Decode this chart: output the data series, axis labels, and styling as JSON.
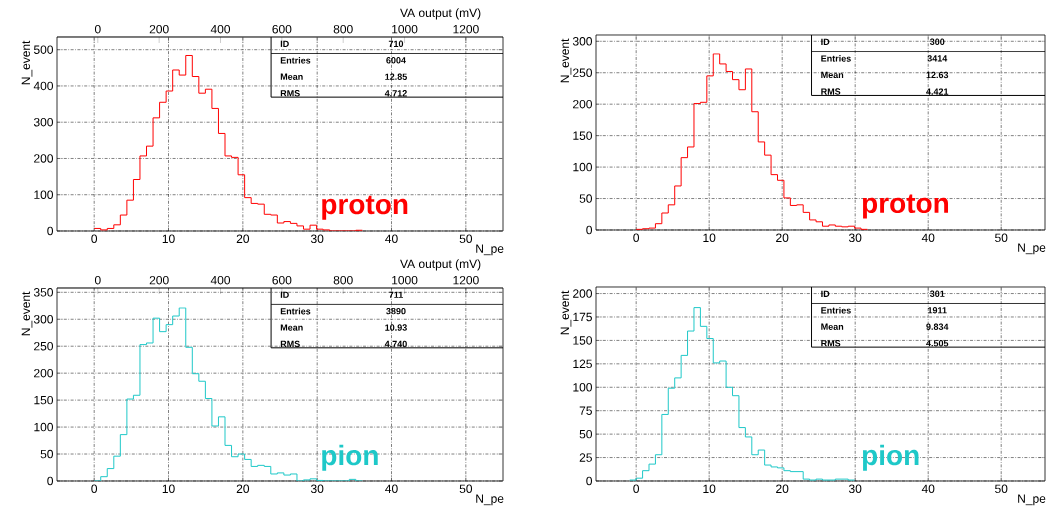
{
  "chart_data": [
    {
      "type": "histogram",
      "xlabel": "N_pe",
      "ylabel": "N_event",
      "x2label": "VA output (mV)",
      "color": "#ff0000",
      "grid": true,
      "xlim": [
        -5,
        55
      ],
      "xticks": [
        0,
        10,
        20,
        30,
        40,
        50
      ],
      "ylim": [
        0,
        535
      ],
      "yticks": [
        0,
        100,
        200,
        300,
        400,
        500
      ],
      "x2lim": [
        -133,
        1321
      ],
      "x2ticks": [
        0,
        200,
        400,
        600,
        800,
        1000,
        1200
      ],
      "bins": [
        0,
        0.88,
        1.76,
        2.64,
        3.52,
        4.4,
        5.28,
        6.16,
        7.04,
        7.92,
        8.8,
        9.68,
        10.56,
        11.44,
        12.32,
        13.2,
        14.08,
        14.96,
        15.84,
        16.72,
        17.6,
        18.48,
        19.36,
        20.24,
        21.12,
        22,
        22.88,
        23.76,
        24.64,
        25.52,
        26.4,
        27.28,
        28.16,
        29.04,
        29.92,
        30.8,
        31.68,
        32.56,
        33.44,
        34.32,
        35.2,
        36.08
      ],
      "values": [
        7,
        3,
        7,
        17,
        44,
        85,
        142,
        207,
        234,
        312,
        355,
        386,
        444,
        430,
        484,
        426,
        380,
        391,
        338,
        269,
        207,
        203,
        155,
        92,
        76,
        74,
        46,
        44,
        22,
        26,
        21,
        14,
        5,
        16,
        5,
        3,
        0,
        0,
        0,
        0,
        2
      ],
      "annotations": [
        "ID",
        "710",
        "Entries",
        "6004",
        "Mean",
        "12.85",
        "RMS",
        "4.712",
        "proton"
      ]
    },
    {
      "type": "histogram",
      "xlabel": "N_pe",
      "ylabel": "N_event",
      "color": "#ff0000",
      "grid": true,
      "xlim": [
        -5.5,
        56
      ],
      "xticks": [
        0,
        10,
        20,
        30,
        40,
        50
      ],
      "ylim": [
        0,
        310
      ],
      "yticks": [
        0,
        50,
        100,
        150,
        200,
        250,
        300
      ],
      "bins": [
        0,
        0.88,
        1.76,
        2.64,
        3.52,
        4.4,
        5.28,
        6.16,
        7.04,
        7.92,
        8.8,
        9.68,
        10.56,
        11.44,
        12.32,
        13.2,
        14.08,
        14.96,
        15.84,
        16.72,
        17.6,
        18.48,
        19.36,
        20.24,
        21.12,
        22,
        22.88,
        23.76,
        24.64,
        25.52,
        26.4,
        27.28,
        28.16,
        29.04,
        29.92,
        30.8,
        31.68
      ],
      "values": [
        1,
        2,
        3,
        10,
        27,
        40,
        70,
        115,
        132,
        201,
        203,
        245,
        280,
        264,
        252,
        239,
        223,
        256,
        188,
        140,
        119,
        88,
        79,
        51,
        39,
        40,
        28,
        16,
        13,
        6,
        8,
        6,
        5,
        6,
        3,
        1
      ],
      "annotations": [
        "ID",
        "300",
        "Entries",
        "3414",
        "Mean",
        "12.63",
        "RMS",
        "4.421",
        "proton"
      ]
    },
    {
      "type": "histogram",
      "xlabel": "N_pe",
      "ylabel": "N_event",
      "x2label": "VA output (mV)",
      "color": "#1ec8c8",
      "grid": true,
      "xlim": [
        -5,
        55
      ],
      "xticks": [
        0,
        10,
        20,
        30,
        40,
        50
      ],
      "ylim": [
        0,
        358
      ],
      "yticks": [
        0,
        50,
        100,
        150,
        200,
        250,
        300,
        350
      ],
      "x2lim": [
        -133,
        1321
      ],
      "x2ticks": [
        0,
        200,
        400,
        600,
        800,
        1000,
        1200
      ],
      "bins": [
        0,
        0.88,
        1.76,
        2.64,
        3.52,
        4.4,
        5.28,
        6.16,
        7.04,
        7.92,
        8.8,
        9.68,
        10.56,
        11.44,
        12.32,
        13.2,
        14.08,
        14.96,
        15.84,
        16.72,
        17.6,
        18.48,
        19.36,
        20.24,
        21.12,
        22,
        22.88,
        23.76,
        24.64,
        25.52,
        26.4,
        27.28,
        28.16,
        29.04,
        29.92,
        30.8,
        31.68,
        32.56,
        33.44,
        34.32,
        35.2,
        36.08
      ],
      "values": [
        0,
        8,
        23,
        46,
        86,
        152,
        159,
        253,
        256,
        302,
        277,
        290,
        306,
        321,
        248,
        199,
        185,
        153,
        102,
        119,
        66,
        45,
        50,
        40,
        27,
        29,
        27,
        13,
        15,
        11,
        13,
        0,
        2,
        4,
        1,
        0,
        0,
        0,
        0,
        3,
        0
      ],
      "annotations": [
        "ID",
        "711",
        "Entries",
        "3890",
        "Mean",
        "10.93",
        "RMS",
        "4.740",
        "pion"
      ]
    },
    {
      "type": "histogram",
      "xlabel": "N_pe",
      "ylabel": "N_event",
      "color": "#1ec8c8",
      "grid": true,
      "xlim": [
        -5.5,
        56
      ],
      "xticks": [
        0,
        10,
        20,
        30,
        40,
        50
      ],
      "ylim": [
        0,
        207
      ],
      "yticks": [
        0,
        25,
        50,
        75,
        100,
        125,
        150,
        175,
        200
      ],
      "bins": [
        -0.88,
        0,
        0.88,
        1.76,
        2.64,
        3.52,
        4.4,
        5.28,
        6.16,
        7.04,
        7.92,
        8.8,
        9.68,
        10.56,
        11.44,
        12.32,
        13.2,
        14.08,
        14.96,
        15.84,
        16.72,
        17.6,
        18.48,
        19.36,
        20.24,
        21.12,
        22,
        22.88,
        23.76,
        24.64,
        25.52,
        26.4,
        27.28,
        28.16,
        29.04,
        29.92
      ],
      "values": [
        1,
        3,
        11,
        18,
        28,
        71,
        99,
        110,
        134,
        160,
        185,
        165,
        152,
        126,
        128,
        100,
        91,
        57,
        47,
        28,
        33,
        17,
        15,
        14,
        11,
        10,
        10,
        2,
        1,
        2,
        1,
        1,
        2,
        2,
        1
      ],
      "annotations": [
        "ID",
        "301",
        "Entries",
        "1911",
        "Mean",
        "9.834",
        "RMS",
        "4.505",
        "pion"
      ]
    }
  ]
}
